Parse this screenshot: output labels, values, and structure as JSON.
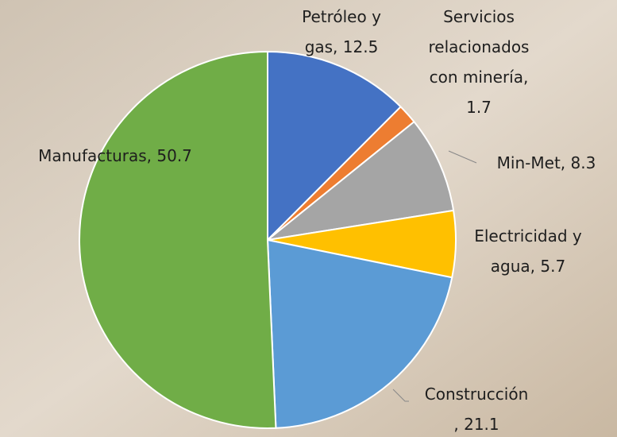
{
  "chart_data": {
    "type": "pie",
    "values": [
      12.5,
      1.7,
      8.3,
      5.7,
      21.1,
      50.7
    ],
    "value_labels": [
      "Petróleo y gas, 12.5",
      "Servicios relacionados con minería, 1.7",
      "Min-Met, 8.3",
      "Electricidad y agua, 5.7",
      "Construcción, 21.1",
      "Manufacturas, 50.7"
    ],
    "colors": [
      "#4472c4",
      "#ed7d31",
      "#a5a5a5",
      "#ffc000",
      "#5b9bd5",
      "#70ad47"
    ]
  }
}
